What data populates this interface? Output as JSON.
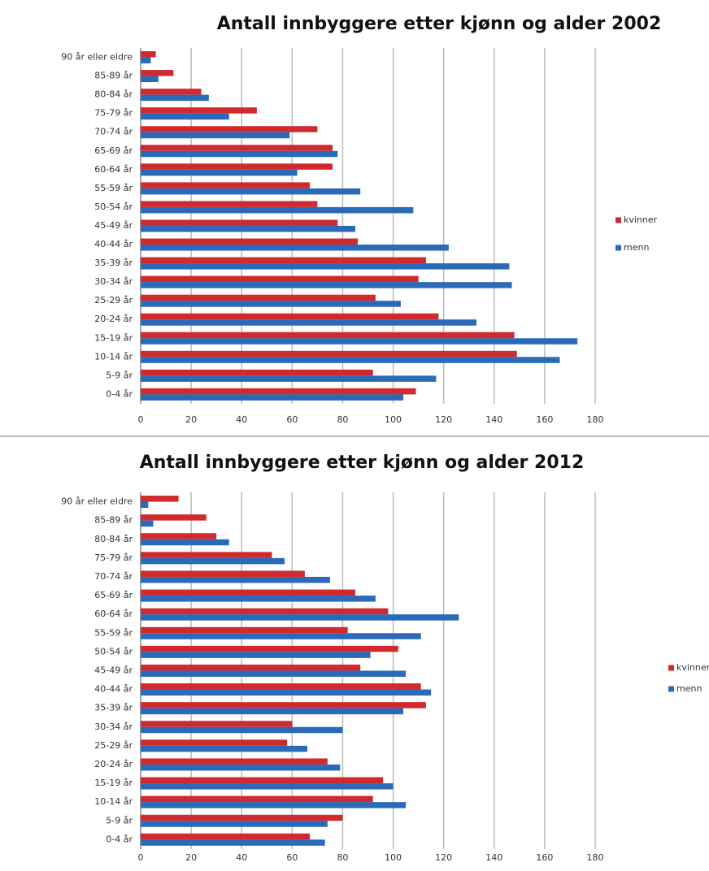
{
  "chart_data": [
    {
      "type": "hbar",
      "title": "Antall innbyggere etter kjønn og alder 2002",
      "categories": [
        "90 år eller eldre",
        "85-89 år",
        "80-84 år",
        "75-79 år",
        "70-74 år",
        "65-69 år",
        "60-64 år",
        "55-59 år",
        "50-54 år",
        "45-49 år",
        "40-44 år",
        "35-39 år",
        "30-34 år",
        "25-29 år",
        "20-24 år",
        "15-19 år",
        "10-14 år",
        "5-9 år",
        "0-4 år"
      ],
      "series": [
        {
          "name": "kvinner",
          "color": "#d02a2e",
          "values": [
            6,
            13,
            24,
            46,
            70,
            76,
            76,
            67,
            70,
            78,
            86,
            113,
            110,
            93,
            118,
            148,
            149,
            92,
            109
          ]
        },
        {
          "name": "menn",
          "color": "#2a6ab8",
          "values": [
            4,
            7,
            27,
            35,
            59,
            78,
            62,
            87,
            108,
            85,
            122,
            146,
            147,
            103,
            133,
            173,
            166,
            117,
            104
          ]
        }
      ],
      "xlim": [
        0,
        180
      ],
      "xticks": [
        0,
        20,
        40,
        60,
        80,
        100,
        120,
        140,
        160,
        180
      ],
      "grid": true,
      "legend": "right"
    },
    {
      "type": "hbar",
      "title": "Antall innbyggere etter kjønn og alder 2012",
      "categories": [
        "90 år eller eldre",
        "85-89 år",
        "80-84 år",
        "75-79 år",
        "70-74 år",
        "65-69 år",
        "60-64 år",
        "55-59 år",
        "50-54 år",
        "45-49 år",
        "40-44 år",
        "35-39 år",
        "30-34 år",
        "25-29 år",
        "20-24 år",
        "15-19 år",
        "10-14 år",
        "5-9 år",
        "0-4 år"
      ],
      "series": [
        {
          "name": "kvinner",
          "color": "#d02a2e",
          "values": [
            15,
            26,
            30,
            52,
            65,
            85,
            98,
            82,
            102,
            87,
            111,
            113,
            60,
            58,
            74,
            96,
            92,
            80,
            67
          ]
        },
        {
          "name": "menn",
          "color": "#2a6ab8",
          "values": [
            3,
            5,
            35,
            57,
            75,
            93,
            126,
            111,
            91,
            105,
            115,
            104,
            80,
            66,
            79,
            100,
            105,
            74,
            73
          ]
        }
      ],
      "xlim": [
        0,
        180
      ],
      "xticks": [
        0,
        20,
        40,
        60,
        80,
        100,
        120,
        140,
        160,
        180
      ],
      "grid": true,
      "legend": "right"
    }
  ]
}
